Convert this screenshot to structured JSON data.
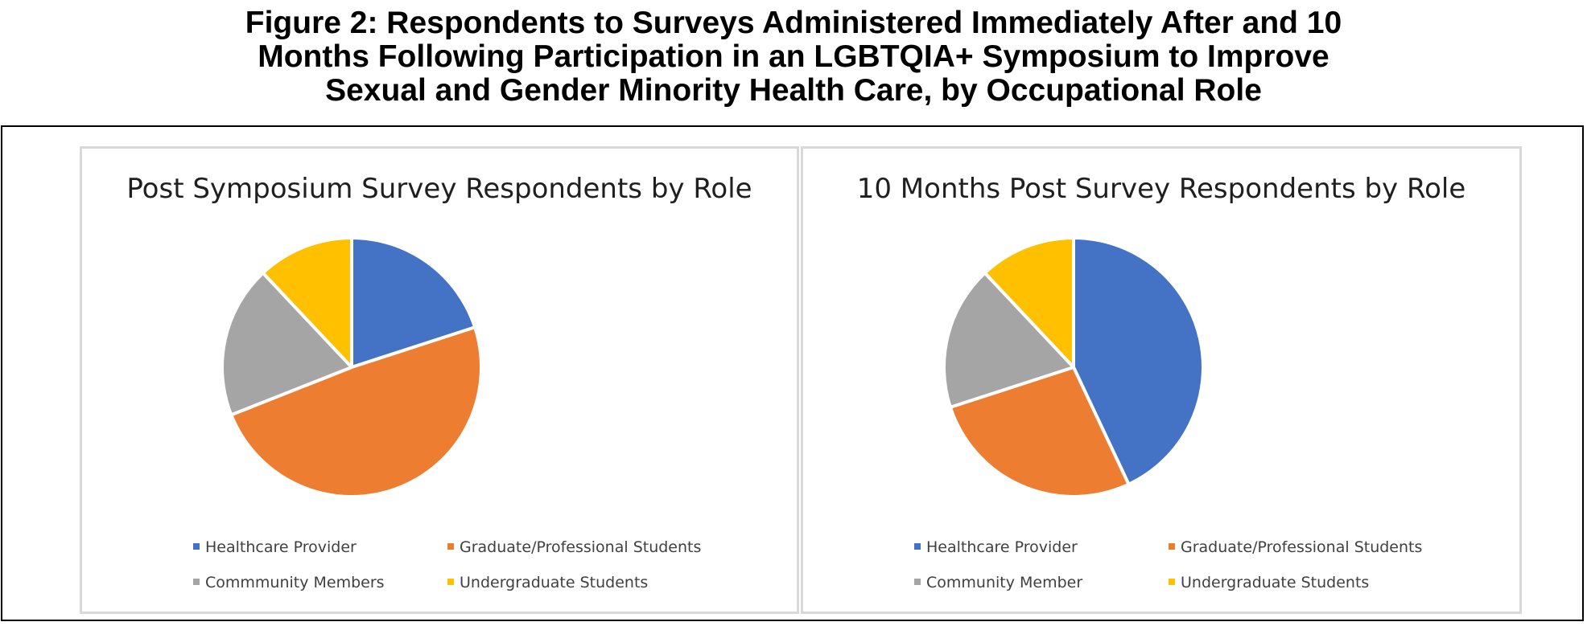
{
  "figure": {
    "title_lines": [
      "Figure 2: Respondents to Surveys Administered Immediately After and 10",
      "Months Following Participation in an LGBTQIA+ Symposium to Improve",
      "Sexual and Gender Minority Health Care, by Occupational Role"
    ]
  },
  "colors": {
    "blue": "#4472c4",
    "orange": "#ed7d31",
    "gray": "#a5a5a5",
    "yellow": "#ffc000"
  },
  "chart_data": [
    {
      "type": "pie",
      "title": "Post Symposium Survey Respondents by Role",
      "categories": [
        "Healthcare Provider",
        "Graduate/Professional Students",
        "Commmunity Members",
        "Undergraduate Students"
      ],
      "values": [
        20,
        49,
        19,
        12
      ],
      "unit": "percent (estimated)",
      "start_angle_deg": 0,
      "direction": "clockwise",
      "legend_position": "bottom",
      "colors": [
        "#4472c4",
        "#ed7d31",
        "#a5a5a5",
        "#ffc000"
      ]
    },
    {
      "type": "pie",
      "title": "10 Months Post Survey Respondents by Role",
      "categories": [
        "Healthcare Provider",
        "Graduate/Professional Students",
        "Community Member",
        "Undergraduate Students"
      ],
      "values": [
        43,
        27,
        18,
        12
      ],
      "unit": "percent (estimated)",
      "start_angle_deg": 0,
      "direction": "clockwise",
      "legend_position": "bottom",
      "colors": [
        "#4472c4",
        "#ed7d31",
        "#a5a5a5",
        "#ffc000"
      ]
    }
  ]
}
